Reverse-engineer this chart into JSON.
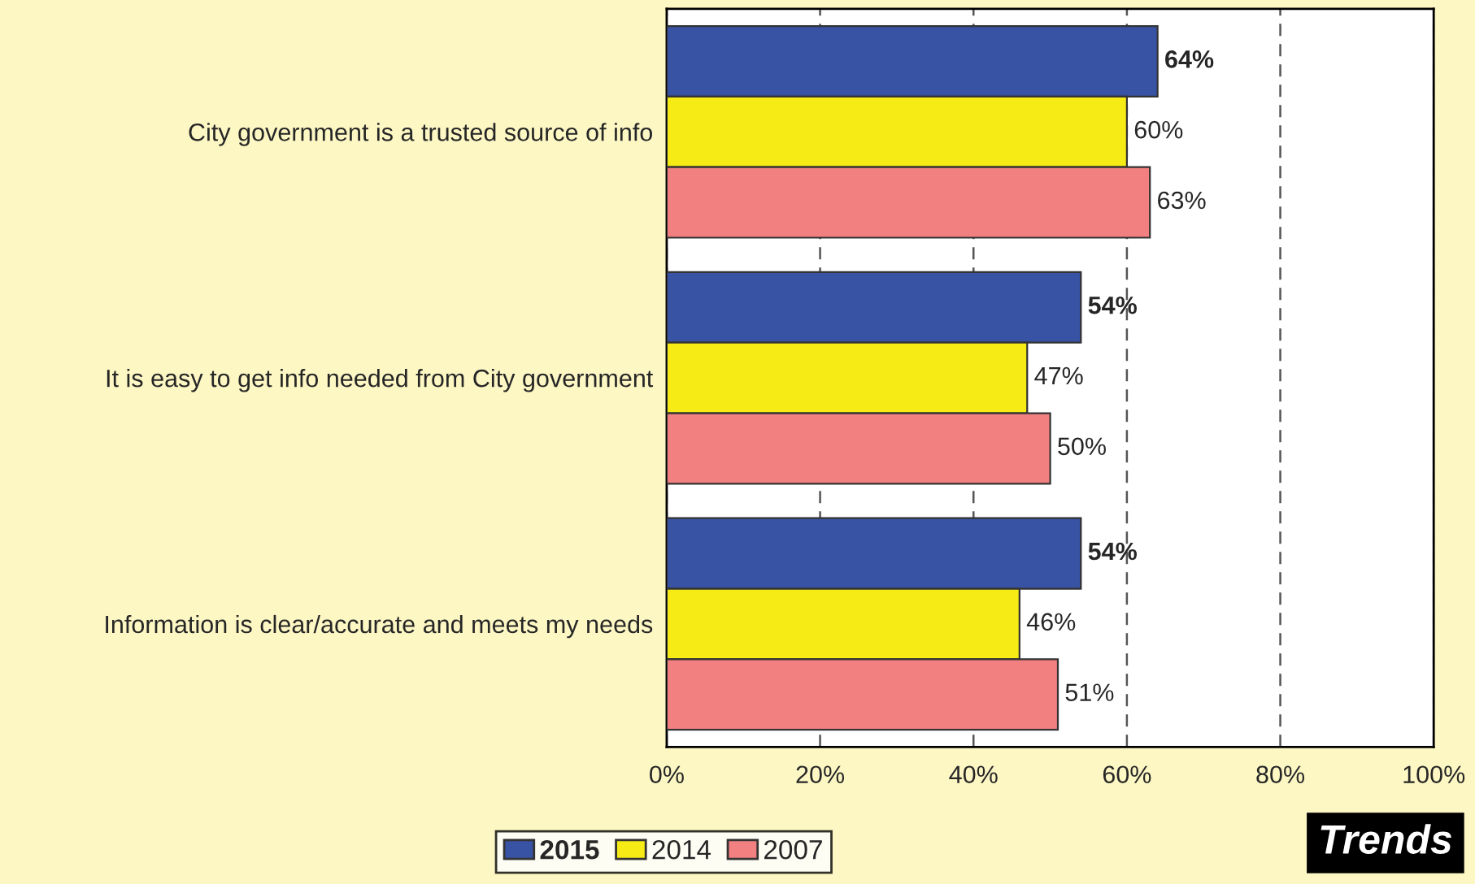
{
  "chart_data": {
    "type": "bar",
    "orientation": "horizontal",
    "categories": [
      "City government is a trusted source of info",
      "It is easy to get info needed from City government",
      "Information is clear/accurate and meets my needs"
    ],
    "series": [
      {
        "name": "2015",
        "color": "#3953a4",
        "values": [
          64,
          54,
          54
        ],
        "value_labels": [
          "64%",
          "54%",
          "54%"
        ]
      },
      {
        "name": "2014",
        "color": "#f6eb14",
        "values": [
          60,
          47,
          46
        ],
        "value_labels": [
          "60%",
          "47%",
          "46%"
        ]
      },
      {
        "name": "2007",
        "color": "#f28080",
        "values": [
          63,
          50,
          51
        ],
        "value_labels": [
          "63%",
          "50%",
          "51%"
        ]
      }
    ],
    "xlim": [
      0,
      100
    ],
    "xticks": [
      {
        "value": 0,
        "label": "0%"
      },
      {
        "value": 20,
        "label": "20%"
      },
      {
        "value": 40,
        "label": "40%"
      },
      {
        "value": 60,
        "label": "60%"
      },
      {
        "value": 80,
        "label": "80%"
      },
      {
        "value": 100,
        "label": "100%"
      }
    ],
    "grid": "x",
    "legend": "bottom",
    "annotations": [
      "Trends"
    ]
  }
}
